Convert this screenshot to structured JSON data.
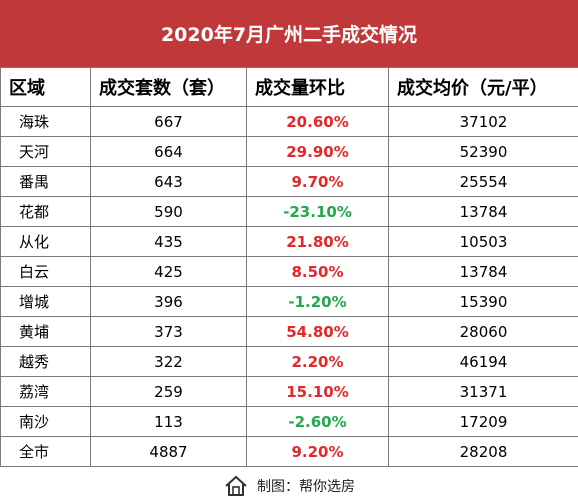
{
  "title": "2020年7月广州二手成交情况",
  "headers": [
    "区域",
    "成交套数（套）",
    "成交量环比",
    "成交均价（元/平）"
  ],
  "rows": [
    {
      "district": "海珠",
      "count": "667",
      "mom": "20.60%",
      "trend": "up",
      "price": "37102"
    },
    {
      "district": "天河",
      "count": "664",
      "mom": "29.90%",
      "trend": "up",
      "price": "52390"
    },
    {
      "district": "番禺",
      "count": "643",
      "mom": "9.70%",
      "trend": "up",
      "price": "25554"
    },
    {
      "district": "花都",
      "count": "590",
      "mom": "-23.10%",
      "trend": "down",
      "price": "13784"
    },
    {
      "district": "从化",
      "count": "435",
      "mom": "21.80%",
      "trend": "up",
      "price": "10503"
    },
    {
      "district": "白云",
      "count": "425",
      "mom": "8.50%",
      "trend": "up",
      "price": "13784"
    },
    {
      "district": "增城",
      "count": "396",
      "mom": "-1.20%",
      "trend": "down",
      "price": "15390"
    },
    {
      "district": "黄埔",
      "count": "373",
      "mom": "54.80%",
      "trend": "up",
      "price": "28060"
    },
    {
      "district": "越秀",
      "count": "322",
      "mom": "2.20%",
      "trend": "up",
      "price": "46194"
    },
    {
      "district": "荔湾",
      "count": "259",
      "mom": "15.10%",
      "trend": "up",
      "price": "31371"
    },
    {
      "district": "南沙",
      "count": "113",
      "mom": "-2.60%",
      "trend": "down",
      "price": "17209"
    },
    {
      "district": "全市",
      "count": "4887",
      "mom": "9.20%",
      "trend": "up",
      "price": "28208"
    }
  ],
  "footer": {
    "credit": "制图：帮你选房",
    "icon": "house-logo-icon"
  },
  "colors": {
    "title_bg": "#c0383a",
    "up": "#e3282b",
    "down": "#23a84f"
  }
}
